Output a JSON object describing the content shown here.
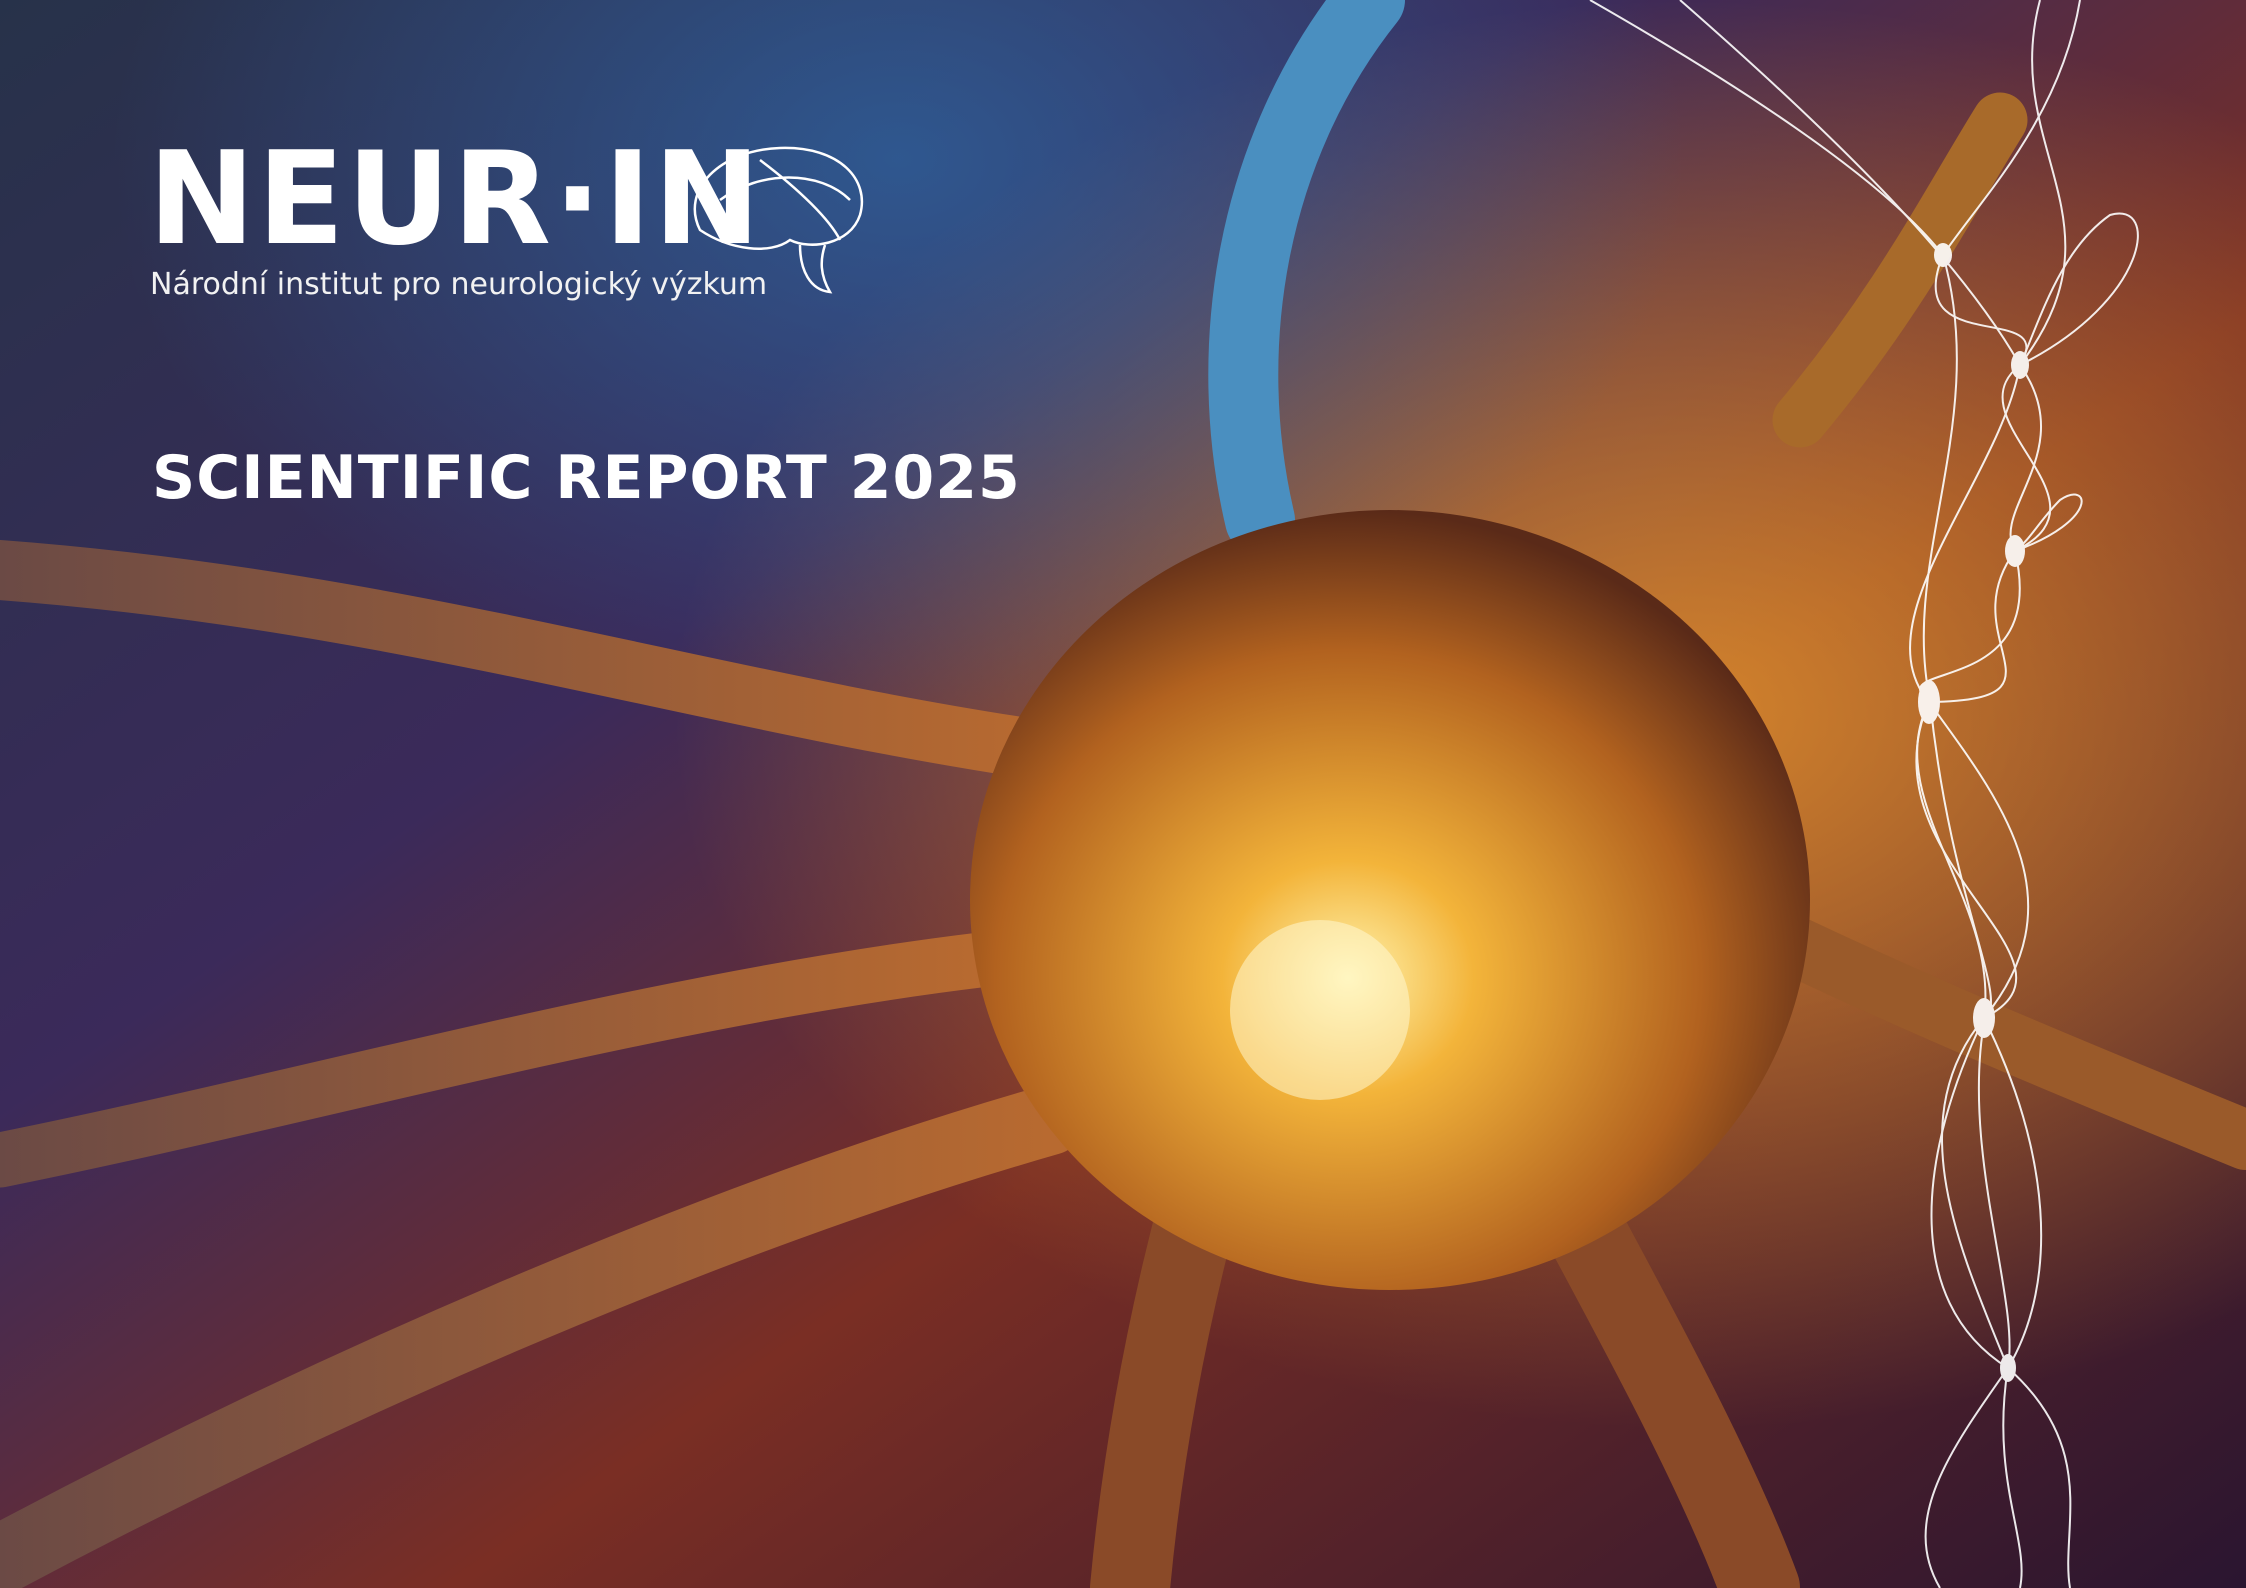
{
  "header": {
    "logo": "NEUR·IN",
    "institute": "Národní institut pro neurologický výzkum"
  },
  "report": {
    "title": "SCIENTIFIC REPORT 2025"
  }
}
